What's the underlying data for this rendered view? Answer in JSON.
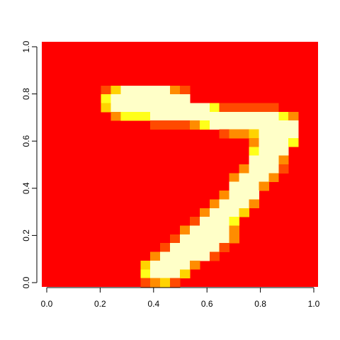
{
  "chart_data": {
    "type": "heatmap",
    "title": "",
    "xlabel": "",
    "ylabel": "",
    "xlim": [
      0,
      1
    ],
    "ylim": [
      0,
      1
    ],
    "x_ticks": [
      "0.0",
      "0.2",
      "0.4",
      "0.6",
      "0.8",
      "1.0"
    ],
    "y_ticks": [
      "0.0",
      "0.2",
      "0.4",
      "0.6",
      "0.8",
      "1.0"
    ],
    "grid": false,
    "rows": 28,
    "cols": 28,
    "palette": [
      "#FF0000",
      "#FF4A00",
      "#FF8C00",
      "#FFD300",
      "#FFFF1A",
      "#FFFFC8"
    ],
    "background_level": 0,
    "cells": [
      [
        7,
        6,
        1
      ],
      [
        8,
        6,
        3
      ],
      [
        9,
        6,
        5
      ],
      [
        10,
        6,
        5
      ],
      [
        11,
        6,
        5
      ],
      [
        12,
        6,
        5
      ],
      [
        13,
        6,
        5
      ],
      [
        14,
        6,
        2
      ],
      [
        15,
        6,
        1
      ],
      [
        7,
        7,
        4
      ],
      [
        8,
        7,
        5
      ],
      [
        9,
        7,
        5
      ],
      [
        10,
        7,
        5
      ],
      [
        11,
        7,
        5
      ],
      [
        12,
        7,
        5
      ],
      [
        13,
        7,
        5
      ],
      [
        14,
        7,
        5
      ],
      [
        15,
        7,
        5
      ],
      [
        7,
        8,
        3
      ],
      [
        8,
        8,
        5
      ],
      [
        9,
        8,
        5
      ],
      [
        10,
        8,
        5
      ],
      [
        11,
        8,
        5
      ],
      [
        12,
        8,
        5
      ],
      [
        13,
        8,
        5
      ],
      [
        14,
        8,
        5
      ],
      [
        15,
        8,
        5
      ],
      [
        16,
        8,
        5
      ],
      [
        17,
        8,
        5
      ],
      [
        18,
        8,
        4
      ],
      [
        19,
        8,
        1
      ],
      [
        20,
        8,
        1
      ],
      [
        21,
        8,
        1
      ],
      [
        22,
        8,
        1
      ],
      [
        23,
        8,
        1
      ],
      [
        24,
        8,
        1
      ],
      [
        8,
        9,
        2
      ],
      [
        9,
        9,
        4
      ],
      [
        10,
        9,
        4
      ],
      [
        11,
        9,
        4
      ],
      [
        12,
        9,
        5
      ],
      [
        13,
        9,
        5
      ],
      [
        14,
        9,
        5
      ],
      [
        15,
        9,
        5
      ],
      [
        16,
        9,
        5
      ],
      [
        17,
        9,
        5
      ],
      [
        18,
        9,
        5
      ],
      [
        19,
        9,
        5
      ],
      [
        20,
        9,
        5
      ],
      [
        21,
        9,
        5
      ],
      [
        22,
        9,
        5
      ],
      [
        23,
        9,
        5
      ],
      [
        24,
        9,
        5
      ],
      [
        25,
        9,
        4
      ],
      [
        26,
        9,
        2
      ],
      [
        12,
        10,
        1
      ],
      [
        13,
        10,
        1
      ],
      [
        14,
        10,
        1
      ],
      [
        15,
        10,
        1
      ],
      [
        16,
        10,
        2
      ],
      [
        17,
        10,
        4
      ],
      [
        18,
        10,
        5
      ],
      [
        19,
        10,
        5
      ],
      [
        20,
        10,
        5
      ],
      [
        21,
        10,
        5
      ],
      [
        22,
        10,
        5
      ],
      [
        23,
        10,
        5
      ],
      [
        24,
        10,
        5
      ],
      [
        25,
        10,
        5
      ],
      [
        26,
        10,
        5
      ],
      [
        19,
        11,
        1
      ],
      [
        20,
        11,
        2
      ],
      [
        21,
        11,
        2
      ],
      [
        22,
        11,
        3
      ],
      [
        23,
        11,
        5
      ],
      [
        24,
        11,
        5
      ],
      [
        25,
        11,
        5
      ],
      [
        26,
        11,
        5
      ],
      [
        22,
        12,
        2
      ],
      [
        23,
        12,
        5
      ],
      [
        24,
        12,
        5
      ],
      [
        25,
        12,
        5
      ],
      [
        26,
        12,
        4
      ],
      [
        22,
        13,
        4
      ],
      [
        23,
        13,
        5
      ],
      [
        24,
        13,
        5
      ],
      [
        25,
        13,
        5
      ],
      [
        22,
        14,
        5
      ],
      [
        23,
        14,
        5
      ],
      [
        24,
        14,
        5
      ],
      [
        25,
        14,
        2
      ],
      [
        21,
        15,
        2
      ],
      [
        22,
        15,
        5
      ],
      [
        23,
        15,
        5
      ],
      [
        24,
        15,
        5
      ],
      [
        25,
        15,
        1
      ],
      [
        20,
        16,
        2
      ],
      [
        21,
        16,
        5
      ],
      [
        22,
        16,
        5
      ],
      [
        23,
        16,
        5
      ],
      [
        24,
        16,
        2
      ],
      [
        20,
        17,
        5
      ],
      [
        21,
        17,
        5
      ],
      [
        22,
        17,
        5
      ],
      [
        23,
        17,
        2
      ],
      [
        19,
        18,
        2
      ],
      [
        20,
        18,
        5
      ],
      [
        21,
        18,
        5
      ],
      [
        22,
        18,
        5
      ],
      [
        18,
        19,
        2
      ],
      [
        19,
        19,
        5
      ],
      [
        20,
        19,
        5
      ],
      [
        21,
        19,
        5
      ],
      [
        22,
        19,
        2
      ],
      [
        17,
        20,
        2
      ],
      [
        18,
        20,
        5
      ],
      [
        19,
        20,
        5
      ],
      [
        20,
        20,
        5
      ],
      [
        21,
        20,
        3
      ],
      [
        16,
        21,
        1
      ],
      [
        17,
        21,
        5
      ],
      [
        18,
        21,
        5
      ],
      [
        19,
        21,
        5
      ],
      [
        20,
        21,
        4
      ],
      [
        15,
        22,
        2
      ],
      [
        16,
        22,
        5
      ],
      [
        17,
        22,
        5
      ],
      [
        18,
        22,
        5
      ],
      [
        19,
        22,
        5
      ],
      [
        20,
        22,
        2
      ],
      [
        14,
        23,
        1
      ],
      [
        15,
        23,
        5
      ],
      [
        16,
        23,
        5
      ],
      [
        17,
        23,
        5
      ],
      [
        18,
        23,
        5
      ],
      [
        19,
        23,
        5
      ],
      [
        20,
        23,
        2
      ],
      [
        13,
        24,
        1
      ],
      [
        14,
        24,
        5
      ],
      [
        15,
        24,
        5
      ],
      [
        16,
        24,
        5
      ],
      [
        17,
        24,
        5
      ],
      [
        18,
        24,
        5
      ],
      [
        19,
        24,
        1
      ],
      [
        12,
        25,
        2
      ],
      [
        13,
        25,
        5
      ],
      [
        14,
        25,
        5
      ],
      [
        15,
        25,
        5
      ],
      [
        16,
        25,
        5
      ],
      [
        17,
        25,
        5
      ],
      [
        18,
        25,
        1
      ],
      [
        11,
        26,
        3
      ],
      [
        12,
        26,
        5
      ],
      [
        13,
        26,
        5
      ],
      [
        14,
        26,
        5
      ],
      [
        15,
        26,
        5
      ],
      [
        16,
        26,
        2
      ],
      [
        11,
        27,
        4
      ],
      [
        12,
        27,
        5
      ],
      [
        13,
        27,
        5
      ],
      [
        14,
        27,
        5
      ],
      [
        15,
        27,
        3
      ],
      [
        11,
        28,
        1
      ],
      [
        12,
        28,
        2
      ],
      [
        13,
        28,
        3
      ],
      [
        14,
        28,
        1
      ]
    ]
  }
}
